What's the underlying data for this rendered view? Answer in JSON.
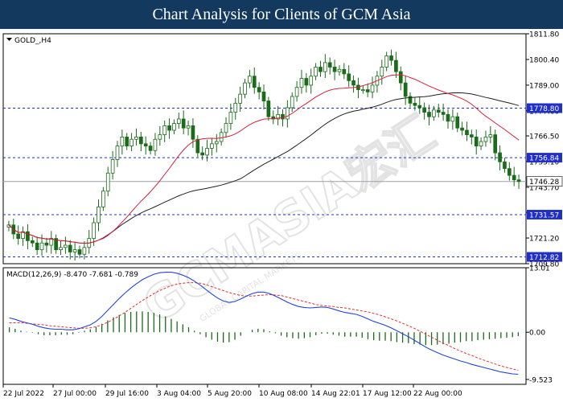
{
  "header": {
    "title": "Chart Analysis for Clients of GCM Asia"
  },
  "watermark": {
    "text": "GCMASIA宏汇",
    "subtext": "GLOBAL CAPITAL MARKETS"
  },
  "colors": {
    "header_bg": "#133a5e",
    "price": "#1a6b1a",
    "ma_fast": "#d6203a",
    "ma_slow": "#202020",
    "level_line": "#1f2fc8",
    "current_line": "#9aa0a6",
    "macd_line": "#2446d8",
    "signal_line": "#e03030",
    "histogram": "#1a6b1a",
    "price_label_bg": "#1f2fc8"
  },
  "chart_data": [
    {
      "type": "candlestick",
      "symbol_label": "GOLD_,H4",
      "ylim": [
        1709.8,
        1811.8
      ],
      "y_ticks": [
        "1811.80",
        "1800.40",
        "1789.00",
        "1777.60",
        "1766.50",
        "1755.10",
        "1743.70",
        "1732.60",
        "1721.20",
        "1709.80"
      ],
      "x_labels": [
        "22 Jul 2022",
        "27 Jul 00:00",
        "29 Jul 16:00",
        "3 Aug 04:00",
        "5 Aug 20:00",
        "10 Aug 08:00",
        "14 Aug 22:01",
        "17 Aug 12:00",
        "22 Aug 00:00"
      ],
      "closes": [
        1727,
        1723,
        1721,
        1724,
        1720,
        1719,
        1716,
        1719,
        1718,
        1721,
        1716,
        1717,
        1718,
        1715,
        1716,
        1714,
        1717,
        1721,
        1728,
        1735,
        1742,
        1750,
        1756,
        1762,
        1766,
        1762,
        1765,
        1766,
        1763,
        1762,
        1760,
        1765,
        1767,
        1771,
        1769,
        1772,
        1774,
        1770,
        1771,
        1765,
        1759,
        1758,
        1761,
        1763,
        1764,
        1768,
        1772,
        1777,
        1781,
        1785,
        1790,
        1793,
        1788,
        1786,
        1782,
        1775,
        1774,
        1776,
        1774,
        1779,
        1784,
        1788,
        1792,
        1789,
        1793,
        1797,
        1795,
        1799,
        1797,
        1795,
        1796,
        1794,
        1791,
        1789,
        1787,
        1787,
        1786,
        1789,
        1793,
        1797,
        1802,
        1800,
        1795,
        1790,
        1784,
        1781,
        1780,
        1779,
        1777,
        1775,
        1778,
        1777,
        1776,
        1773,
        1775,
        1770,
        1769,
        1767,
        1766,
        1762,
        1764,
        1766,
        1767,
        1759,
        1755,
        1752,
        1749,
        1747,
        1746.28
      ],
      "ma_fast": {
        "name": "",
        "period": 20
      },
      "ma_slow": {
        "name": "",
        "period": 50
      },
      "levels": [
        {
          "value": 1778.8,
          "label": "1778.80"
        },
        {
          "value": 1756.84,
          "label": "1756.84"
        },
        {
          "value": 1731.57,
          "label": "1731.57"
        },
        {
          "value": 1712.82,
          "label": "1712.82"
        }
      ],
      "current_price": {
        "value": 1746.28,
        "label": "1746.28"
      }
    },
    {
      "type": "macd",
      "title": "MACD(12,26,9) -8.470 -7.681 -0.789",
      "ylim": [
        -10.5,
        13.01
      ],
      "y_ticks": [
        "13.01",
        "0.00",
        "-9.523"
      ],
      "macd": [
        2.9,
        2.6,
        2.2,
        1.9,
        1.6,
        1.2,
        0.9,
        0.7,
        0.6,
        0.6,
        0.5,
        0.5,
        0.7,
        1.1,
        1.5,
        2.2,
        3.2,
        4.4,
        5.6,
        6.8,
        7.9,
        8.9,
        9.8,
        10.6,
        11.2,
        11.7,
        12.0,
        12.1,
        12.1,
        11.9,
        11.5,
        11.0,
        10.3,
        9.5,
        8.6,
        7.7,
        6.9,
        6.3,
        6.0,
        6.2,
        6.7,
        7.3,
        7.8,
        8.1,
        8.1,
        7.8,
        7.3,
        6.7,
        6.1,
        5.6,
        5.2,
        5.0,
        4.9,
        5.0,
        5.1,
        5.0,
        4.7,
        4.3,
        4.0,
        3.8,
        3.6,
        3.2,
        2.7,
        2.2,
        1.8,
        1.4,
        0.9,
        0.3,
        -0.3,
        -0.9,
        -1.6,
        -2.3,
        -3.0,
        -3.6,
        -4.1,
        -4.6,
        -5.0,
        -5.4,
        -5.8,
        -6.1,
        -6.5,
        -6.8,
        -7.1,
        -7.4,
        -7.7,
        -8.0,
        -8.2,
        -8.4,
        -8.47
      ],
      "signal": [
        1.9,
        1.9,
        1.9,
        1.8,
        1.7,
        1.6,
        1.5,
        1.3,
        1.2,
        1.1,
        1.0,
        0.9,
        0.8,
        0.8,
        0.9,
        1.1,
        1.5,
        2.0,
        2.6,
        3.3,
        4.0,
        4.8,
        5.6,
        6.4,
        7.1,
        7.8,
        8.4,
        8.9,
        9.4,
        9.7,
        9.9,
        10.0,
        10.0,
        9.9,
        9.6,
        9.2,
        8.8,
        8.4,
        8.0,
        7.7,
        7.4,
        7.3,
        7.3,
        7.4,
        7.5,
        7.6,
        7.5,
        7.4,
        7.1,
        6.8,
        6.5,
        6.2,
        5.9,
        5.6,
        5.4,
        5.3,
        5.2,
        5.0,
        4.9,
        4.7,
        4.5,
        4.3,
        4.1,
        3.8,
        3.5,
        3.1,
        2.7,
        2.3,
        1.8,
        1.3,
        0.8,
        0.2,
        -0.4,
        -1.0,
        -1.6,
        -2.2,
        -2.7,
        -3.3,
        -3.8,
        -4.3,
        -4.7,
        -5.2,
        -5.6,
        -6.0,
        -6.4,
        -6.8,
        -7.1,
        -7.4,
        -7.681
      ]
    }
  ]
}
